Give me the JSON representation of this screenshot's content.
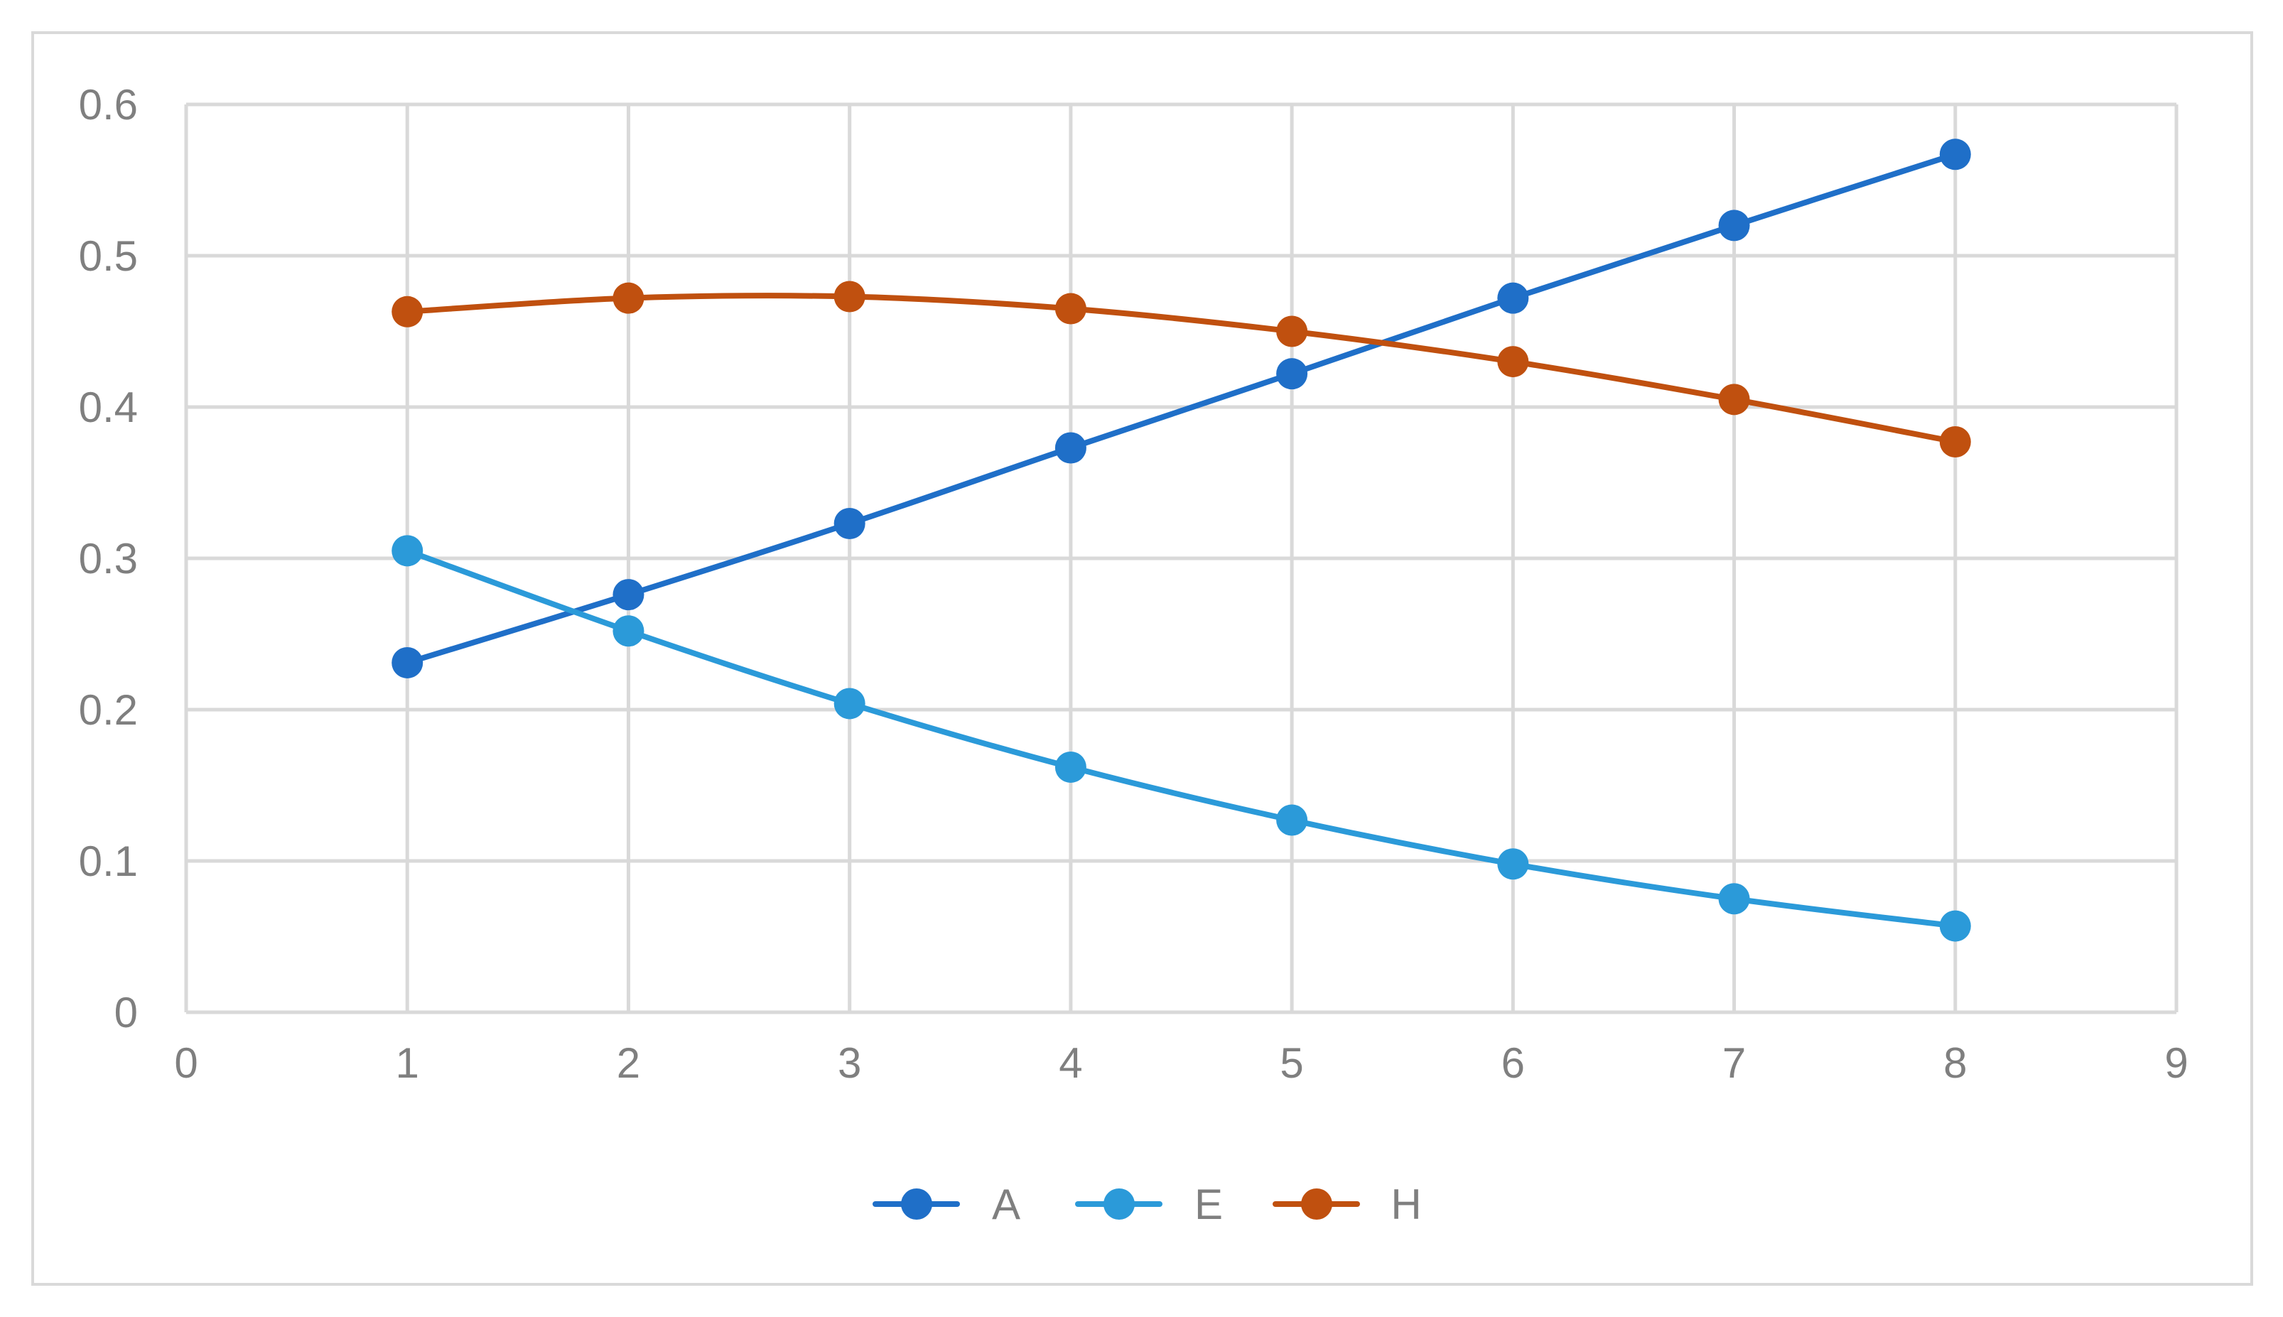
{
  "chart_data": {
    "type": "scatter",
    "title": "",
    "xlabel": "",
    "ylabel": "",
    "xlim": [
      0,
      9
    ],
    "ylim": [
      0,
      0.6
    ],
    "x_ticks": [
      "0",
      "1",
      "2",
      "3",
      "4",
      "5",
      "6",
      "7",
      "8",
      "9"
    ],
    "y_ticks": [
      "0",
      "0.1",
      "0.2",
      "0.3",
      "0.4",
      "0.5",
      "0.6"
    ],
    "grid": true,
    "smoothed_lines": true,
    "legend_position": "bottom",
    "x": [
      1,
      2,
      3,
      4,
      5,
      6,
      7,
      8
    ],
    "series": [
      {
        "name": "A",
        "color": "#1f6fc8",
        "values": [
          0.231,
          0.276,
          0.323,
          0.373,
          0.422,
          0.472,
          0.52,
          0.567
        ]
      },
      {
        "name": "E",
        "color": "#2b9ad9",
        "values": [
          0.305,
          0.252,
          0.204,
          0.162,
          0.127,
          0.098,
          0.075,
          0.057
        ]
      },
      {
        "name": "H",
        "color": "#c0500f",
        "values": [
          0.463,
          0.472,
          0.473,
          0.465,
          0.45,
          0.43,
          0.405,
          0.377
        ]
      }
    ]
  }
}
